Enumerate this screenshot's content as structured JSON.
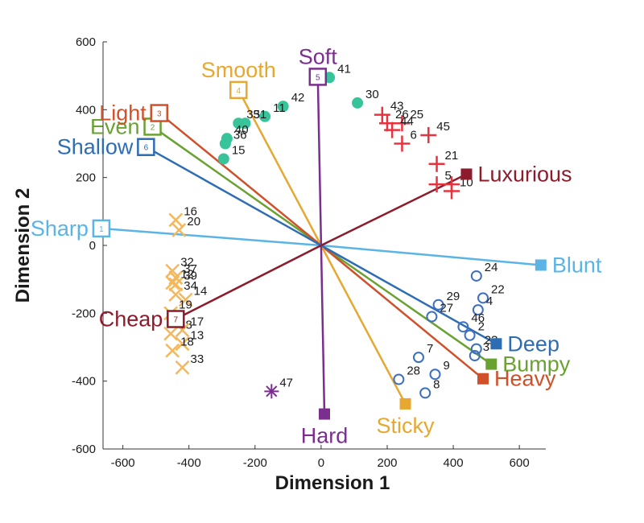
{
  "chart_data": {
    "type": "scatter",
    "xlabel": "Dimension 1",
    "ylabel": "Dimension 2",
    "xlim": [
      -660,
      680
    ],
    "ylim": [
      -600,
      600
    ],
    "xticks": [
      -600,
      -400,
      -200,
      0,
      200,
      400,
      600
    ],
    "yticks": [
      -600,
      -400,
      -200,
      0,
      200,
      400,
      600
    ],
    "directions": [
      {
        "id": "1",
        "label": "Sharp",
        "end_label": "Blunt",
        "color": "#5ab4e6",
        "start": [
          -665,
          50
        ],
        "end": [
          665,
          -58
        ]
      },
      {
        "id": "2",
        "label": "Even",
        "end_label": "Bumpy",
        "color": "#6aa232",
        "start": [
          -510,
          350
        ],
        "end": [
          515,
          -350
        ]
      },
      {
        "id": "3",
        "label": "Light",
        "end_label": "Heavy",
        "color": "#d0502a",
        "start": [
          -490,
          390
        ],
        "end": [
          490,
          -393
        ]
      },
      {
        "id": "4",
        "label": "Smooth",
        "end_label": "Sticky",
        "color": "#e6a830",
        "start": [
          -250,
          458
        ],
        "end": [
          255,
          -467
        ]
      },
      {
        "id": "5",
        "label": "Soft",
        "end_label": "Hard",
        "color": "#7a2f8e",
        "start": [
          -10,
          497
        ],
        "end": [
          10,
          -497
        ]
      },
      {
        "id": "6",
        "label": "Shallow",
        "end_label": "Deep",
        "color": "#2f6db3",
        "start": [
          -530,
          290
        ],
        "end": [
          530,
          -290
        ]
      },
      {
        "id": "7",
        "label": "Cheap",
        "end_label": "Luxurious",
        "color": "#8c1c2c",
        "start": [
          -440,
          -217
        ],
        "end": [
          440,
          210
        ]
      }
    ],
    "groups": [
      {
        "marker": "dot",
        "color": "#38c49a",
        "points": [
          {
            "label": "41",
            "x": 25,
            "y": 495
          },
          {
            "label": "30",
            "x": 110,
            "y": 420
          },
          {
            "label": "42",
            "x": -115,
            "y": 410
          },
          {
            "label": "11",
            "x": -170,
            "y": 380
          },
          {
            "label": "35",
            "x": -250,
            "y": 360
          },
          {
            "label": "31",
            "x": -230,
            "y": 360
          },
          {
            "label": "40",
            "x": -285,
            "y": 315
          },
          {
            "label": "36",
            "x": -290,
            "y": 300
          },
          {
            "label": "15",
            "x": -295,
            "y": 255
          }
        ]
      },
      {
        "marker": "plus",
        "color": "#e8333f",
        "points": [
          {
            "label": "43",
            "x": 185,
            "y": 385
          },
          {
            "label": "25",
            "x": 245,
            "y": 360
          },
          {
            "label": "26",
            "x": 200,
            "y": 360
          },
          {
            "label": "44",
            "x": 215,
            "y": 340
          },
          {
            "label": "45",
            "x": 325,
            "y": 325
          },
          {
            "label": "6",
            "x": 245,
            "y": 300
          },
          {
            "label": "21",
            "x": 350,
            "y": 240
          },
          {
            "label": "5",
            "x": 350,
            "y": 180
          },
          {
            "label": "1",
            "x": 395,
            "y": 180
          },
          {
            "label": "10",
            "x": 395,
            "y": 160
          }
        ]
      },
      {
        "marker": "cross",
        "color": "#f5b75c",
        "points": [
          {
            "label": "16",
            "x": -440,
            "y": 75
          },
          {
            "label": "20",
            "x": -430,
            "y": 45
          },
          {
            "label": "32",
            "x": -450,
            "y": -75
          },
          {
            "label": "37",
            "x": -440,
            "y": -95
          },
          {
            "label": "12",
            "x": -450,
            "y": -110
          },
          {
            "label": "39",
            "x": -440,
            "y": -115
          },
          {
            "label": "34",
            "x": -440,
            "y": -145
          },
          {
            "label": "14",
            "x": -410,
            "y": -160
          },
          {
            "label": "19",
            "x": -455,
            "y": -200
          },
          {
            "label": "38",
            "x": -455,
            "y": -260
          },
          {
            "label": "17",
            "x": -420,
            "y": -250
          },
          {
            "label": "13",
            "x": -420,
            "y": -290
          },
          {
            "label": "18",
            "x": -450,
            "y": -310
          },
          {
            "label": "33",
            "x": -420,
            "y": -360
          }
        ]
      },
      {
        "marker": "circle",
        "color": "#3c6fc0",
        "points": [
          {
            "label": "24",
            "x": 470,
            "y": -90
          },
          {
            "label": "22",
            "x": 490,
            "y": -155
          },
          {
            "label": "29",
            "x": 355,
            "y": -175
          },
          {
            "label": "4",
            "x": 475,
            "y": -190
          },
          {
            "label": "46",
            "x": 430,
            "y": -240
          },
          {
            "label": "27",
            "x": 335,
            "y": -210
          },
          {
            "label": "2",
            "x": 450,
            "y": -265
          },
          {
            "label": "23",
            "x": 470,
            "y": -305
          },
          {
            "label": "3",
            "x": 465,
            "y": -325
          },
          {
            "label": "7",
            "x": 295,
            "y": -330
          },
          {
            "label": "9",
            "x": 345,
            "y": -380
          },
          {
            "label": "28",
            "x": 235,
            "y": -395
          },
          {
            "label": "8",
            "x": 315,
            "y": -435
          }
        ]
      },
      {
        "marker": "asterisk",
        "color": "#7a2f8e",
        "points": [
          {
            "label": "47",
            "x": -150,
            "y": -430
          }
        ]
      }
    ]
  }
}
